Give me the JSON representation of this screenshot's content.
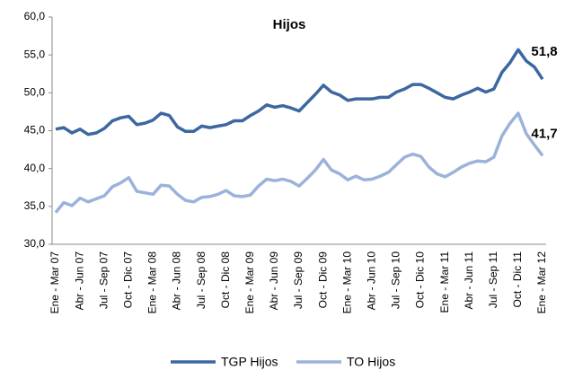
{
  "chart_data": {
    "type": "line",
    "title": "Hijos",
    "categories": [
      "Ene - Mar 07",
      null,
      null,
      "Abr - Jun 07",
      null,
      null,
      "Jul - Sep 07",
      null,
      null,
      "Oct - Dic 07",
      null,
      null,
      "Ene - Mar 08",
      null,
      null,
      "Abr - Jun 08",
      null,
      null,
      "Jul - Sep 08",
      null,
      null,
      "Oct - Dic 08",
      null,
      null,
      "Ene - Mar 09",
      null,
      null,
      "Abr - Jun 09",
      null,
      null,
      "Jul - Sep 09",
      null,
      null,
      "Oct - Dic 09",
      null,
      null,
      "Ene - Mar 10",
      null,
      null,
      "Abr - Jun 10",
      null,
      null,
      "Jul - Sep 10",
      null,
      null,
      "Oct - Dic 10",
      null,
      null,
      "Ene - Mar 11",
      null,
      null,
      "Abr - Jun 11",
      null,
      null,
      "Jul - Sep 11",
      null,
      null,
      "Oct - Dic 11",
      null,
      null,
      "Ene - Mar 12"
    ],
    "series": [
      {
        "name": "TGP Hijos",
        "color": "#3c67a1",
        "values": [
          45.2,
          45.4,
          44.7,
          45.2,
          44.5,
          44.7,
          45.3,
          46.3,
          46.7,
          46.9,
          45.8,
          46.0,
          46.4,
          47.3,
          47.0,
          45.5,
          44.9,
          44.9,
          45.6,
          45.4,
          45.6,
          45.8,
          46.3,
          46.3,
          47.0,
          47.6,
          48.4,
          48.1,
          48.3,
          48.0,
          47.6,
          48.7,
          49.8,
          51.0,
          50.1,
          49.7,
          49.0,
          49.2,
          49.2,
          49.2,
          49.4,
          49.4,
          50.1,
          50.5,
          51.1,
          51.1,
          50.6,
          50.0,
          49.4,
          49.2,
          49.7,
          50.1,
          50.6,
          50.1,
          50.5,
          52.7,
          54.0,
          55.7,
          54.2,
          53.4,
          51.8
        ],
        "value_labels": [
          null,
          null,
          null,
          null,
          null,
          null,
          null,
          null,
          null,
          null,
          null,
          null,
          null,
          null,
          null,
          null,
          null,
          null,
          null,
          null,
          null,
          null,
          null,
          null,
          null,
          null,
          null,
          null,
          null,
          null,
          null,
          null,
          null,
          null,
          null,
          null,
          null,
          null,
          null,
          null,
          null,
          null,
          null,
          null,
          null,
          null,
          null,
          null,
          null,
          null,
          null,
          null,
          null,
          null,
          null,
          null,
          null,
          null,
          null,
          null,
          "51,8"
        ]
      },
      {
        "name": "TO Hijos",
        "color": "#9bb2da",
        "values": [
          34.2,
          35.5,
          35.1,
          36.1,
          35.6,
          36.0,
          36.4,
          37.6,
          38.1,
          38.8,
          37.0,
          36.8,
          36.6,
          37.8,
          37.7,
          36.6,
          35.8,
          35.6,
          36.2,
          36.3,
          36.6,
          37.1,
          36.4,
          36.3,
          36.5,
          37.7,
          38.6,
          38.4,
          38.6,
          38.3,
          37.7,
          38.7,
          39.8,
          41.2,
          39.8,
          39.3,
          38.5,
          39.0,
          38.5,
          38.6,
          39.0,
          39.5,
          40.5,
          41.5,
          41.9,
          41.6,
          40.2,
          39.3,
          38.9,
          39.5,
          40.2,
          40.7,
          41.0,
          40.9,
          41.5,
          44.3,
          46.0,
          47.3,
          44.6,
          43.1,
          41.7
        ],
        "value_labels": [
          null,
          null,
          null,
          null,
          null,
          null,
          null,
          null,
          null,
          null,
          null,
          null,
          null,
          null,
          null,
          null,
          null,
          null,
          null,
          null,
          null,
          null,
          null,
          null,
          null,
          null,
          null,
          null,
          null,
          null,
          null,
          null,
          null,
          null,
          null,
          null,
          null,
          null,
          null,
          null,
          null,
          null,
          null,
          null,
          null,
          null,
          null,
          null,
          null,
          null,
          null,
          null,
          null,
          null,
          null,
          null,
          null,
          null,
          null,
          null,
          "41,7"
        ]
      }
    ],
    "ylim": [
      30,
      60
    ],
    "yticks": [
      {
        "value": 30,
        "label": "30,0"
      },
      {
        "value": 35,
        "label": "35,0"
      },
      {
        "value": 40,
        "label": "40,0"
      },
      {
        "value": 45,
        "label": "45,0"
      },
      {
        "value": 50,
        "label": "50,0"
      },
      {
        "value": 55,
        "label": "55,0"
      },
      {
        "value": 60,
        "label": "60,0"
      }
    ],
    "grid": false,
    "legend": "bottom"
  }
}
